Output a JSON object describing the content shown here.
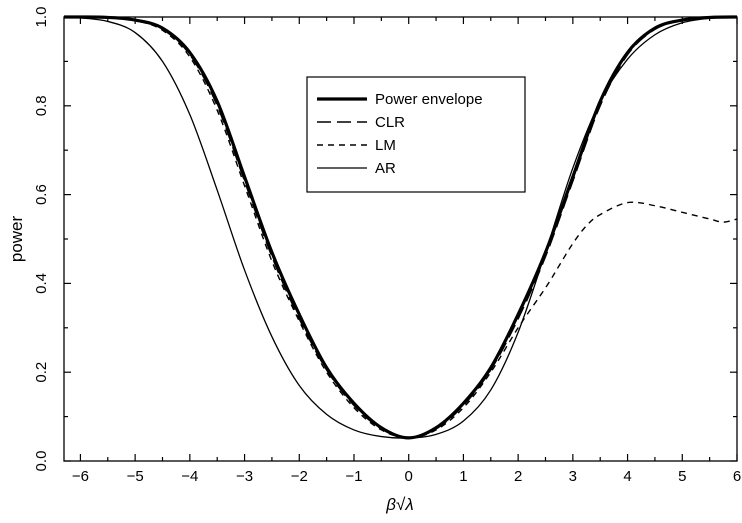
{
  "chart_data": {
    "type": "line",
    "xlabel": "β√λ",
    "ylabel": "power",
    "xlim": [
      -6.3,
      6
    ],
    "ylim": [
      0,
      1
    ],
    "xticks": [
      -6,
      -5,
      -4,
      -3,
      -2,
      -1,
      0,
      1,
      2,
      3,
      4,
      5,
      6
    ],
    "xtick_labels": [
      "−6",
      "−5",
      "−4",
      "−3",
      "−2",
      "−1",
      "0",
      "1",
      "2",
      "3",
      "4",
      "5",
      "6"
    ],
    "yticks": [
      0,
      0.2,
      0.4,
      0.6,
      0.8,
      1
    ],
    "ytick_labels": [
      "0.0",
      "0.2",
      "0.4",
      "0.6",
      "0.8",
      "1.0"
    ],
    "grid": false,
    "legend_position": "upper-center",
    "series": [
      {
        "name": "Power envelope",
        "style": "solid-thick",
        "color": "#000000",
        "x": [
          -6.3,
          -6,
          -5.5,
          -5,
          -4.5,
          -4,
          -3.5,
          -3,
          -2.5,
          -2,
          -1.5,
          -1,
          -0.5,
          0,
          0.5,
          1,
          1.5,
          2,
          2.5,
          3,
          3.5,
          4,
          4.5,
          5,
          5.5,
          6
        ],
        "y": [
          1.0,
          1.0,
          0.999,
          0.993,
          0.975,
          0.92,
          0.81,
          0.64,
          0.47,
          0.33,
          0.21,
          0.13,
          0.075,
          0.052,
          0.075,
          0.13,
          0.21,
          0.33,
          0.47,
          0.64,
          0.81,
          0.92,
          0.975,
          0.993,
          0.999,
          1.0
        ]
      },
      {
        "name": "CLR",
        "style": "long-dash",
        "color": "#000000",
        "x": [
          -6.3,
          -6,
          -5.5,
          -5,
          -4.5,
          -4,
          -3.5,
          -3,
          -2.5,
          -2,
          -1.5,
          -1,
          -0.5,
          0,
          0.5,
          1,
          1.5,
          2,
          2.5,
          3,
          3.5,
          4,
          4.5,
          5,
          5.5,
          6
        ],
        "y": [
          1.0,
          1.0,
          0.999,
          0.992,
          0.972,
          0.915,
          0.8,
          0.63,
          0.46,
          0.32,
          0.205,
          0.125,
          0.072,
          0.052,
          0.072,
          0.125,
          0.205,
          0.32,
          0.46,
          0.63,
          0.8,
          0.915,
          0.972,
          0.992,
          0.999,
          1.0
        ]
      },
      {
        "name": "LM",
        "style": "short-dash",
        "color": "#000000",
        "x": [
          -6.3,
          -6,
          -5.5,
          -5,
          -4.5,
          -4,
          -3.5,
          -3,
          -2.5,
          -2,
          -1.5,
          -1,
          -0.5,
          0,
          0.5,
          1,
          1.5,
          2,
          2.5,
          2.75,
          3,
          3.25,
          3.5,
          4,
          4.5,
          5,
          5.5,
          5.75,
          6
        ],
        "y": [
          1.0,
          1.0,
          0.999,
          0.992,
          0.97,
          0.91,
          0.79,
          0.62,
          0.45,
          0.315,
          0.2,
          0.12,
          0.07,
          0.052,
          0.07,
          0.12,
          0.2,
          0.3,
          0.39,
          0.44,
          0.49,
          0.53,
          0.555,
          0.582,
          0.575,
          0.56,
          0.545,
          0.538,
          0.545
        ]
      },
      {
        "name": "AR",
        "style": "solid-thin",
        "color": "#000000",
        "x": [
          -6.3,
          -6,
          -5.5,
          -5,
          -4.5,
          -4,
          -3.5,
          -3,
          -2.5,
          -2,
          -1.5,
          -1,
          -0.5,
          0,
          0.5,
          1,
          1.5,
          2,
          2.5,
          3,
          3.5,
          4,
          4.5,
          5,
          5.5,
          6
        ],
        "y": [
          1.0,
          0.998,
          0.99,
          0.965,
          0.9,
          0.78,
          0.61,
          0.43,
          0.28,
          0.17,
          0.105,
          0.07,
          0.055,
          0.052,
          0.06,
          0.09,
          0.16,
          0.29,
          0.47,
          0.66,
          0.81,
          0.905,
          0.96,
          0.987,
          0.997,
          1.0
        ]
      }
    ]
  }
}
